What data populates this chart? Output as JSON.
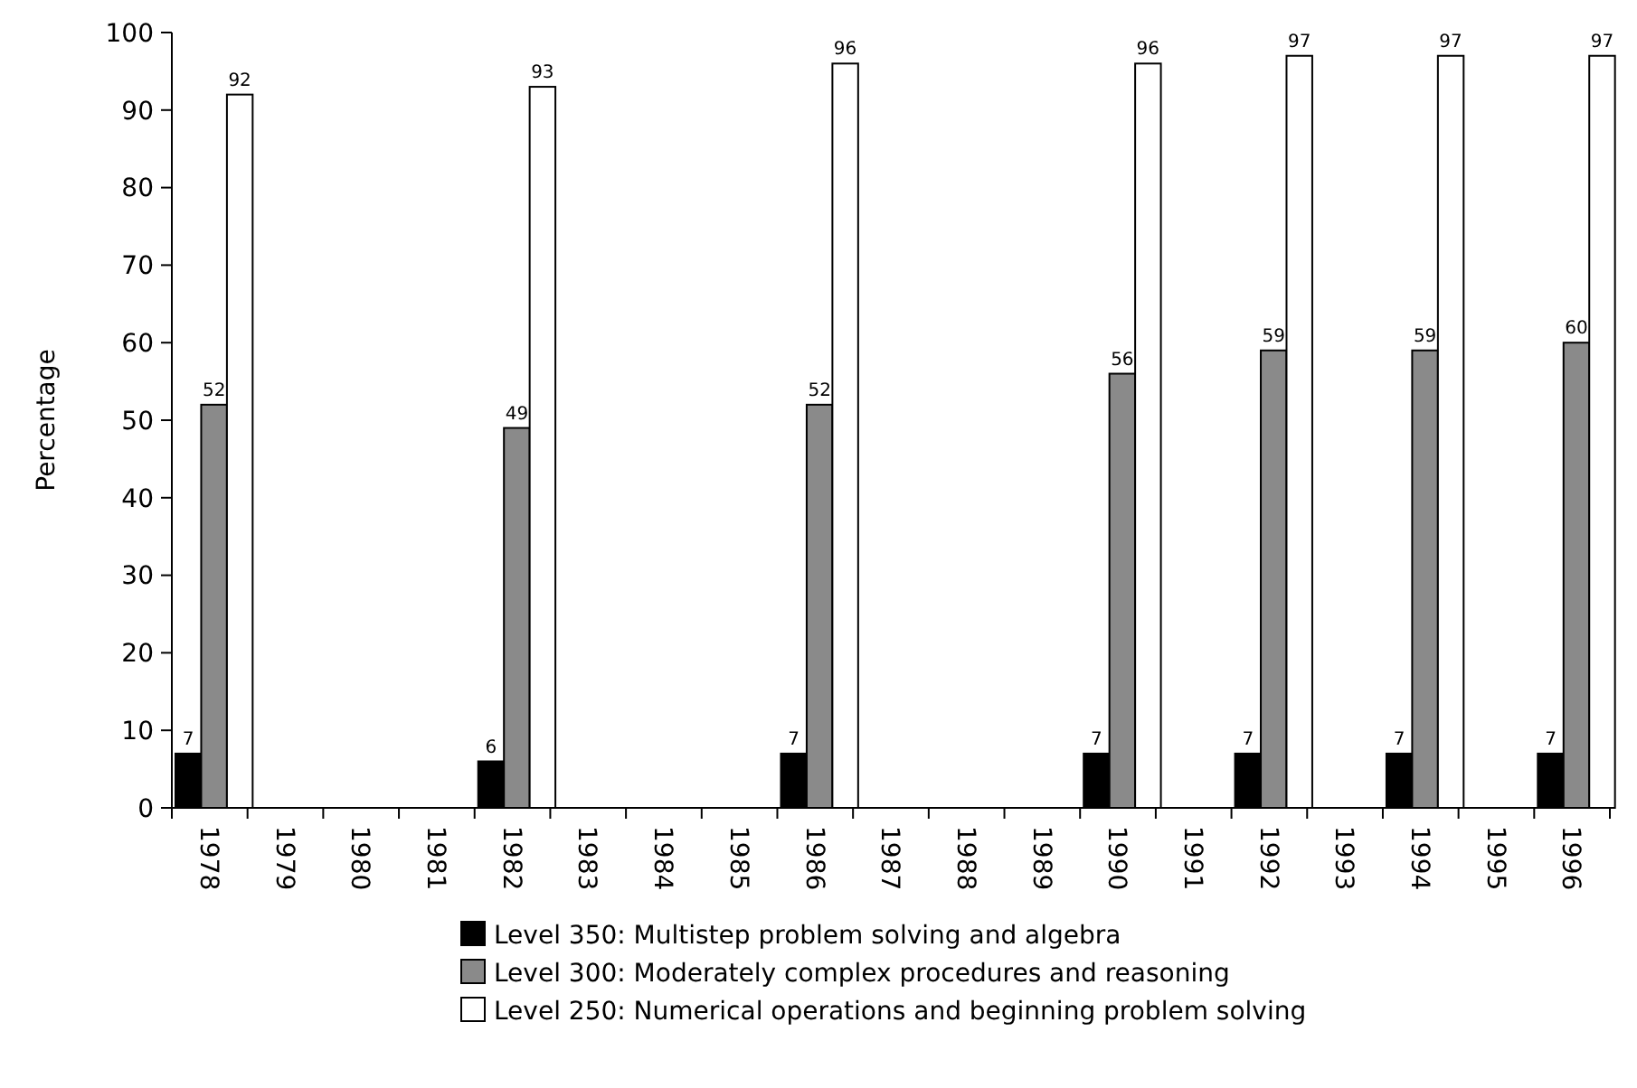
{
  "chart_data": {
    "type": "bar",
    "ylabel": "Percentage",
    "categories": [
      "1978",
      "1979",
      "1980",
      "1981",
      "1982",
      "1983",
      "1984",
      "1985",
      "1986",
      "1987",
      "1988",
      "1989",
      "1990",
      "1991",
      "1992",
      "1993",
      "1994",
      "1995",
      "1996"
    ],
    "series": [
      {
        "name": "Level 350: Multistep problem solving and algebra",
        "color": "#000000",
        "values": [
          7,
          null,
          null,
          null,
          6,
          null,
          null,
          null,
          7,
          null,
          null,
          null,
          7,
          null,
          7,
          null,
          7,
          null,
          7
        ]
      },
      {
        "name": "Level 300: Moderately complex procedures and reasoning",
        "color": "#8a8a8a",
        "values": [
          52,
          null,
          null,
          null,
          49,
          null,
          null,
          null,
          52,
          null,
          null,
          null,
          56,
          null,
          59,
          null,
          59,
          null,
          60
        ]
      },
      {
        "name": "Level 250: Numerical operations and beginning problem solving",
        "color": "#ffffff",
        "values": [
          92,
          null,
          null,
          null,
          93,
          null,
          null,
          null,
          96,
          null,
          null,
          null,
          96,
          null,
          97,
          null,
          97,
          null,
          97
        ]
      }
    ],
    "ylim": [
      0,
      100
    ],
    "yticks": [
      0,
      10,
      20,
      30,
      40,
      50,
      60,
      70,
      80,
      90,
      100
    ],
    "data_labels": true,
    "legend": "bottom",
    "grid": false
  }
}
